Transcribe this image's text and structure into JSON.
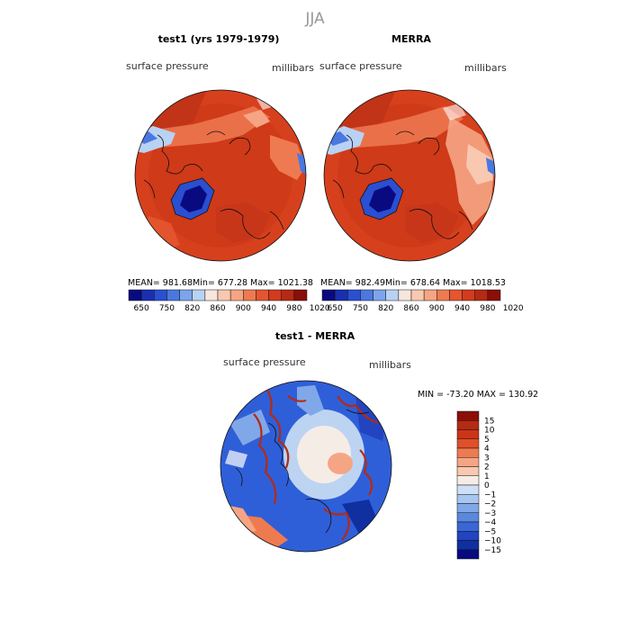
{
  "chart_data": {
    "title": "JJA",
    "panels": [
      {
        "id": "test1",
        "type": "heatmap",
        "title": "test1 (yrs 1979-1979)",
        "variable": "surface pressure",
        "units": "millibars",
        "stats": {
          "mean": "MEAN= 981.68",
          "min": "Min= 677.28",
          "max": "Max= 1021.38"
        }
      },
      {
        "id": "merra",
        "type": "heatmap",
        "title": "MERRA",
        "variable": "surface pressure",
        "units": "millibars",
        "stats": {
          "mean": "MEAN= 982.49",
          "min": "Min= 678.64",
          "max": "Max= 1018.53"
        }
      },
      {
        "id": "diff",
        "type": "heatmap",
        "title": "test1 - MERRA",
        "variable": "surface pressure",
        "units": "millibars",
        "stats": {
          "minmax": "MIN = -73.20 MAX = 130.92"
        }
      }
    ],
    "colorbar_abs": {
      "colors": [
        "#0a0a80",
        "#1a2fb0",
        "#2a4fd0",
        "#4a78e0",
        "#7da4ea",
        "#b8d2f4",
        "#f6e6de",
        "#f8c8b0",
        "#f5a584",
        "#ee7a50",
        "#e45530",
        "#d23b1e",
        "#b52a12",
        "#8a0f08"
      ],
      "tick_labels": [
        "650",
        "750",
        "820",
        "860",
        "900",
        "940",
        "980",
        "1020"
      ]
    },
    "colorbar_diff": {
      "colors": [
        "#8a0f08",
        "#b52a12",
        "#cc3418",
        "#e0502a",
        "#ee7a50",
        "#f5a584",
        "#f8c8b0",
        "#f6ece6",
        "#cfe0f6",
        "#a8c6ef",
        "#80a8e8",
        "#5a88e0",
        "#3a66d6",
        "#2244c0",
        "#1030a0",
        "#0a0a80"
      ],
      "tick_labels": [
        "15",
        "10",
        "5",
        "4",
        "3",
        "2",
        "1",
        "0",
        "−1",
        "−2",
        "−3",
        "−4",
        "−5",
        "−10",
        "−15"
      ]
    }
  }
}
